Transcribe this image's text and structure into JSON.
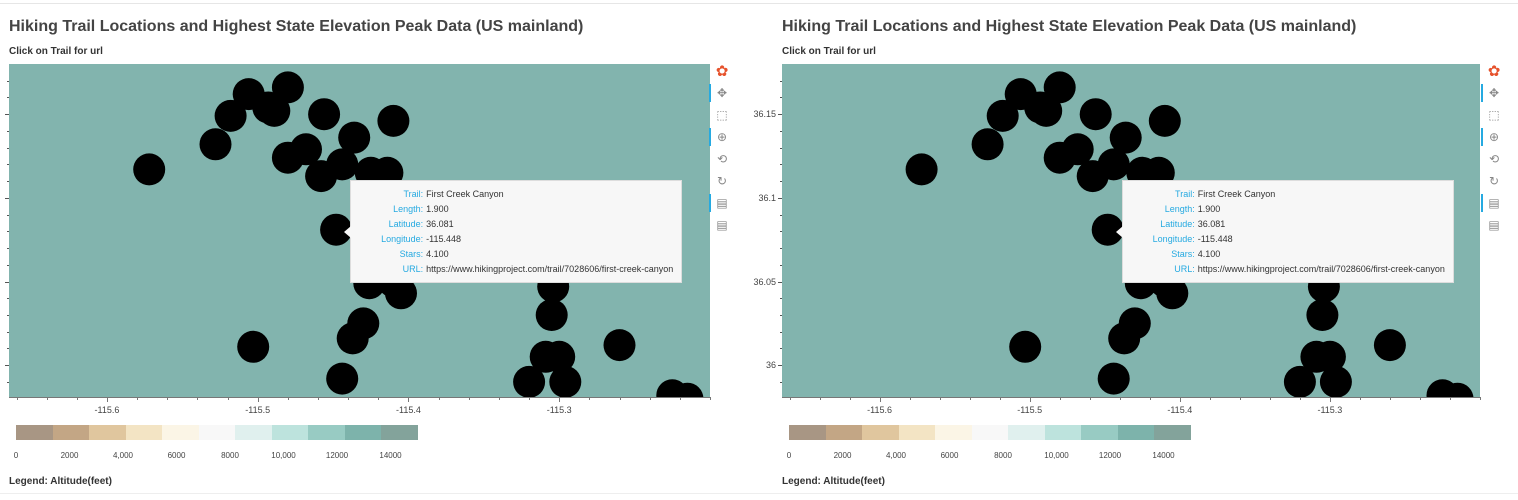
{
  "panels": [
    {
      "title": "Hiking Trail Locations and Highest State Elevation Peak Data (US mainland)",
      "subtitle": "Click on Trail for url",
      "y_labels": [],
      "x_labels": [
        "-115.6",
        "-115.5",
        "-115.4",
        "-115.3"
      ],
      "tooltip": [
        {
          "key": "Trail:",
          "value": "First Creek Canyon"
        },
        {
          "key": "Length:",
          "value": "1.900"
        },
        {
          "key": "Latitude:",
          "value": "36.081"
        },
        {
          "key": "Longitude:",
          "value": "-115.448"
        },
        {
          "key": "Stars:",
          "value": "4.100"
        },
        {
          "key": "URL:",
          "value": "https://www.hikingproject.com/trail/7028606/first-creek-canyon"
        }
      ],
      "colorbar_labels": [
        "0",
        "2000",
        "4,000",
        "6000",
        "8000",
        "10,000",
        "12000",
        "14000"
      ],
      "legend": "Legend: Altitude(feet)"
    },
    {
      "title": "Hiking Trail Locations and Highest State Elevation Peak Data (US mainland)",
      "subtitle": "Click on Trail for url",
      "y_labels": [
        "36.15",
        "36.1",
        "36.05",
        "36"
      ],
      "x_labels": [
        "-115.6",
        "-115.5",
        "-115.4",
        "-115.3"
      ],
      "tooltip": [
        {
          "key": "Trail:",
          "value": "First Creek Canyon"
        },
        {
          "key": "Length:",
          "value": "1.900"
        },
        {
          "key": "Latitude:",
          "value": "36.081"
        },
        {
          "key": "Longitude:",
          "value": "-115.448"
        },
        {
          "key": "Stars:",
          "value": "4.100"
        },
        {
          "key": "URL:",
          "value": "https://www.hikingproject.com/trail/7028606/first-creek-canyon"
        }
      ],
      "colorbar_labels": [
        "0",
        "2000",
        "4,000",
        "6000",
        "8000",
        "10,000",
        "12000",
        "14000"
      ],
      "legend": "Legend: Altitude(feet)"
    }
  ],
  "toolbar": [
    {
      "name": "bokeh-logo-icon",
      "glyph": "✿",
      "color": "#e6522c"
    },
    {
      "name": "pan-tool-icon",
      "glyph": "✥"
    },
    {
      "name": "box-zoom-tool-icon",
      "glyph": "⬚"
    },
    {
      "name": "wheel-zoom-tool-icon",
      "glyph": "⊕"
    },
    {
      "name": "zoom-reset-tool-icon",
      "glyph": "⟲"
    },
    {
      "name": "reset-tool-icon",
      "glyph": "↻"
    },
    {
      "name": "hover-tool-icon",
      "glyph": "▤"
    },
    {
      "name": "hover-tool-2-icon",
      "glyph": "▤"
    }
  ],
  "colors": {
    "map_background": "#82b4ae",
    "marker": "#000000",
    "colorbar": [
      "#a89684",
      "#c3a685",
      "#e0c69e",
      "#f3e4c4",
      "#fbf5e6",
      "#f8f8f8",
      "#e0f0ee",
      "#bde3dd",
      "#98cbc3",
      "#7db3ab",
      "#83a39b"
    ],
    "tooltip_key": "#26aae1"
  },
  "chart_data": {
    "type": "scatter",
    "xlabel": "",
    "ylabel": "",
    "xlim": [
      -115.665,
      -115.2
    ],
    "ylim": [
      35.981,
      36.18
    ],
    "points": [
      {
        "x": -115.572,
        "y": 36.117
      },
      {
        "x": -115.528,
        "y": 36.132
      },
      {
        "x": -115.506,
        "y": 36.162
      },
      {
        "x": -115.518,
        "y": 36.149
      },
      {
        "x": -115.493,
        "y": 36.154
      },
      {
        "x": -115.48,
        "y": 36.166
      },
      {
        "x": -115.456,
        "y": 36.15
      },
      {
        "x": -115.436,
        "y": 36.136
      },
      {
        "x": -115.444,
        "y": 36.12
      },
      {
        "x": -115.489,
        "y": 36.152
      },
      {
        "x": -115.48,
        "y": 36.124
      },
      {
        "x": -115.468,
        "y": 36.129
      },
      {
        "x": -115.458,
        "y": 36.113
      },
      {
        "x": -115.41,
        "y": 36.146
      },
      {
        "x": -115.425,
        "y": 36.115
      },
      {
        "x": -115.414,
        "y": 36.115
      },
      {
        "x": -115.417,
        "y": 36.096
      },
      {
        "x": -115.403,
        "y": 36.083
      },
      {
        "x": -115.448,
        "y": 36.081
      },
      {
        "x": -115.4,
        "y": 36.058
      },
      {
        "x": -115.416,
        "y": 36.057
      },
      {
        "x": -115.41,
        "y": 36.05
      },
      {
        "x": -115.426,
        "y": 36.049
      },
      {
        "x": -115.405,
        "y": 36.043
      },
      {
        "x": -115.43,
        "y": 36.025
      },
      {
        "x": -115.437,
        "y": 36.016
      },
      {
        "x": -115.444,
        "y": 35.992
      },
      {
        "x": -115.503,
        "y": 36.011
      },
      {
        "x": -115.342,
        "y": 36.063
      },
      {
        "x": -115.322,
        "y": 36.063
      },
      {
        "x": -115.304,
        "y": 36.047
      },
      {
        "x": -115.305,
        "y": 36.03
      },
      {
        "x": -115.309,
        "y": 36.005
      },
      {
        "x": -115.3,
        "y": 36.005
      },
      {
        "x": -115.296,
        "y": 35.99
      },
      {
        "x": -115.32,
        "y": 35.99
      },
      {
        "x": -115.26,
        "y": 36.012
      },
      {
        "x": -115.225,
        "y": 35.982
      },
      {
        "x": -115.215,
        "y": 35.98
      },
      {
        "x": -115.332,
        "y": 36.095
      },
      {
        "x": -115.342,
        "y": 36.08
      },
      {
        "x": -115.338,
        "y": 36.068
      }
    ]
  }
}
